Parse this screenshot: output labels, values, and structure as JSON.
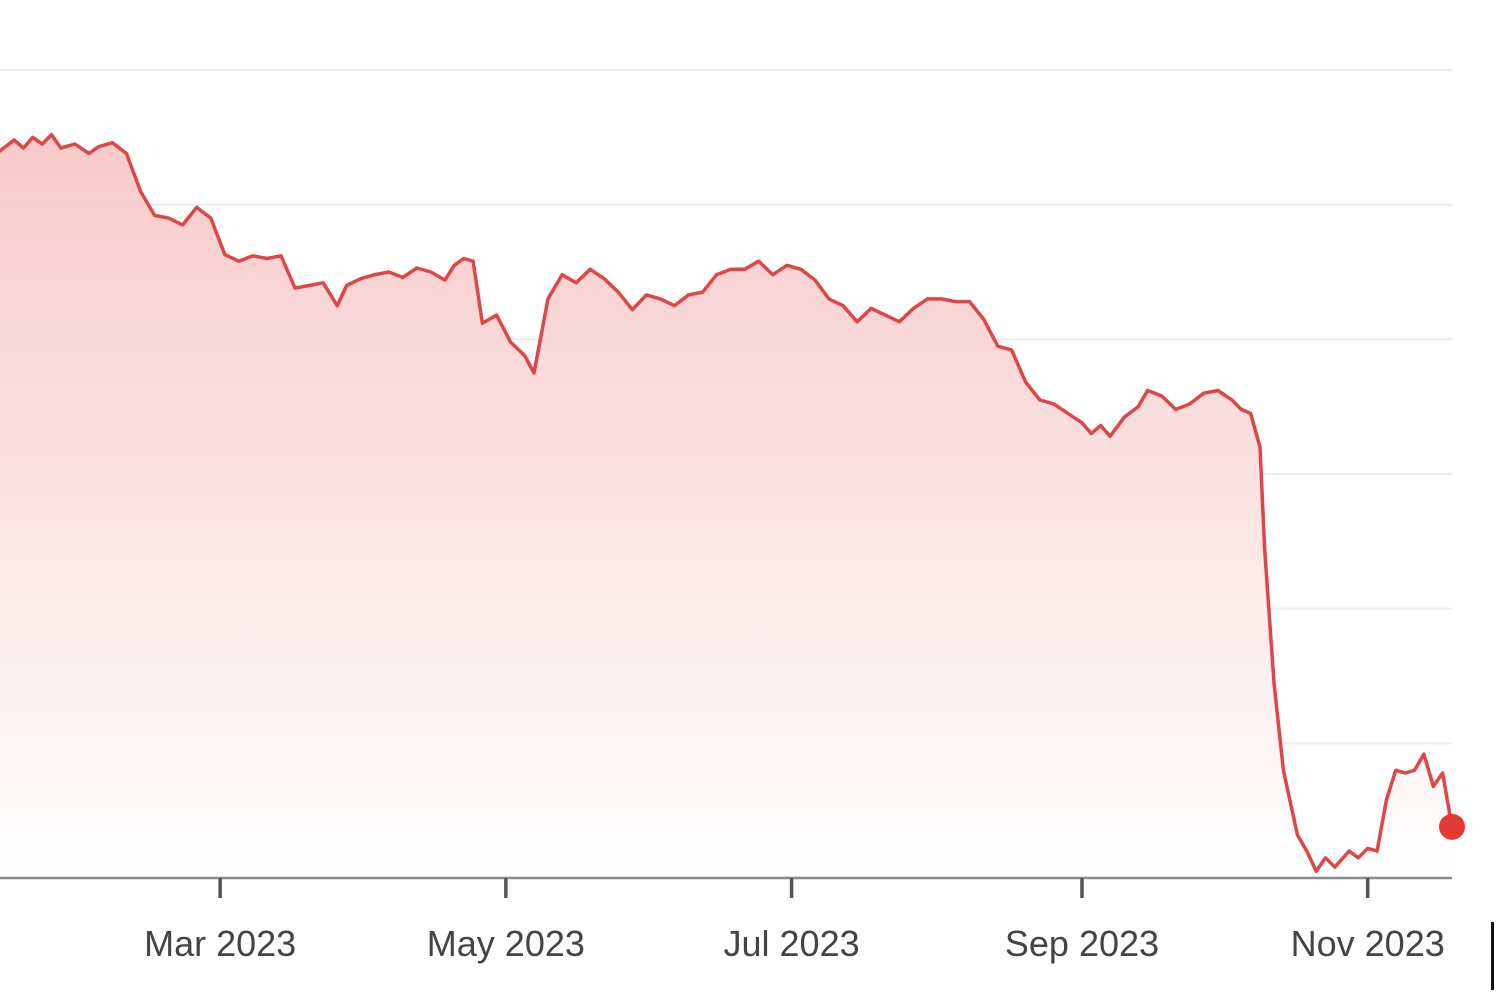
{
  "chart_data": {
    "type": "area",
    "title": "",
    "xlabel": "",
    "ylabel": "",
    "x_ticks": [
      "Mar 2023",
      "May 2023",
      "Jul 2023",
      "Sep 2023",
      "Nov 2023"
    ],
    "y_axis_labels_visible": false,
    "grid": true,
    "legend": "none",
    "colors": {
      "line": "#e04646",
      "fill_top": "#f7c7c7",
      "fill_bottom": "#ffffff",
      "marker": "#e53935"
    },
    "series": [
      {
        "values": [
          [
            "2023-01-13",
            5.4
          ],
          [
            "2023-01-16",
            5.48
          ],
          [
            "2023-01-18",
            5.42
          ],
          [
            "2023-01-20",
            5.5
          ],
          [
            "2023-01-22",
            5.45
          ],
          [
            "2023-01-24",
            5.52
          ],
          [
            "2023-01-26",
            5.42
          ],
          [
            "2023-01-29",
            5.45
          ],
          [
            "2023-02-01",
            5.38
          ],
          [
            "2023-02-03",
            5.43
          ],
          [
            "2023-02-06",
            5.46
          ],
          [
            "2023-02-09",
            5.38
          ],
          [
            "2023-02-12",
            5.1
          ],
          [
            "2023-02-15",
            4.92
          ],
          [
            "2023-02-18",
            4.9
          ],
          [
            "2023-02-21",
            4.85
          ],
          [
            "2023-02-24",
            4.98
          ],
          [
            "2023-02-27",
            4.9
          ],
          [
            "2023-03-02",
            4.63
          ],
          [
            "2023-03-05",
            4.58
          ],
          [
            "2023-03-08",
            4.62
          ],
          [
            "2023-03-11",
            4.6
          ],
          [
            "2023-03-14",
            4.62
          ],
          [
            "2023-03-17",
            4.38
          ],
          [
            "2023-03-20",
            4.4
          ],
          [
            "2023-03-23",
            4.42
          ],
          [
            "2023-03-26",
            4.25
          ],
          [
            "2023-03-28",
            4.4
          ],
          [
            "2023-03-31",
            4.45
          ],
          [
            "2023-04-03",
            4.48
          ],
          [
            "2023-04-06",
            4.5
          ],
          [
            "2023-04-09",
            4.46
          ],
          [
            "2023-04-12",
            4.53
          ],
          [
            "2023-04-15",
            4.5
          ],
          [
            "2023-04-18",
            4.44
          ],
          [
            "2023-04-20",
            4.55
          ],
          [
            "2023-04-22",
            4.6
          ],
          [
            "2023-04-24",
            4.58
          ],
          [
            "2023-04-26",
            4.12
          ],
          [
            "2023-04-29",
            4.18
          ],
          [
            "2023-05-02",
            3.98
          ],
          [
            "2023-05-05",
            3.88
          ],
          [
            "2023-05-07",
            3.75
          ],
          [
            "2023-05-10",
            4.3
          ],
          [
            "2023-05-13",
            4.48
          ],
          [
            "2023-05-16",
            4.42
          ],
          [
            "2023-05-19",
            4.52
          ],
          [
            "2023-05-22",
            4.45
          ],
          [
            "2023-05-25",
            4.35
          ],
          [
            "2023-05-28",
            4.22
          ],
          [
            "2023-05-31",
            4.33
          ],
          [
            "2023-06-03",
            4.3
          ],
          [
            "2023-06-06",
            4.25
          ],
          [
            "2023-06-09",
            4.33
          ],
          [
            "2023-06-12",
            4.35
          ],
          [
            "2023-06-15",
            4.48
          ],
          [
            "2023-06-18",
            4.52
          ],
          [
            "2023-06-21",
            4.52
          ],
          [
            "2023-06-24",
            4.58
          ],
          [
            "2023-06-27",
            4.48
          ],
          [
            "2023-06-30",
            4.55
          ],
          [
            "2023-07-03",
            4.52
          ],
          [
            "2023-07-06",
            4.44
          ],
          [
            "2023-07-09",
            4.3
          ],
          [
            "2023-07-12",
            4.25
          ],
          [
            "2023-07-15",
            4.13
          ],
          [
            "2023-07-18",
            4.23
          ],
          [
            "2023-07-21",
            4.18
          ],
          [
            "2023-07-24",
            4.13
          ],
          [
            "2023-07-27",
            4.23
          ],
          [
            "2023-07-30",
            4.3
          ],
          [
            "2023-08-02",
            4.3
          ],
          [
            "2023-08-05",
            4.28
          ],
          [
            "2023-08-08",
            4.28
          ],
          [
            "2023-08-11",
            4.15
          ],
          [
            "2023-08-14",
            3.95
          ],
          [
            "2023-08-17",
            3.92
          ],
          [
            "2023-08-20",
            3.68
          ],
          [
            "2023-08-23",
            3.55
          ],
          [
            "2023-08-26",
            3.52
          ],
          [
            "2023-08-29",
            3.45
          ],
          [
            "2023-09-01",
            3.38
          ],
          [
            "2023-09-03",
            3.3
          ],
          [
            "2023-09-05",
            3.36
          ],
          [
            "2023-09-07",
            3.28
          ],
          [
            "2023-09-10",
            3.42
          ],
          [
            "2023-09-13",
            3.5
          ],
          [
            "2023-09-15",
            3.62
          ],
          [
            "2023-09-18",
            3.58
          ],
          [
            "2023-09-21",
            3.48
          ],
          [
            "2023-09-24",
            3.52
          ],
          [
            "2023-09-27",
            3.6
          ],
          [
            "2023-09-30",
            3.62
          ],
          [
            "2023-10-03",
            3.55
          ],
          [
            "2023-10-05",
            3.48
          ],
          [
            "2023-10-07",
            3.45
          ],
          [
            "2023-10-09",
            3.2
          ],
          [
            "2023-10-10",
            2.45
          ],
          [
            "2023-10-12",
            1.45
          ],
          [
            "2023-10-14",
            0.8
          ],
          [
            "2023-10-17",
            0.32
          ],
          [
            "2023-10-19",
            0.2
          ],
          [
            "2023-10-21",
            0.05
          ],
          [
            "2023-10-23",
            0.15
          ],
          [
            "2023-10-25",
            0.08
          ],
          [
            "2023-10-28",
            0.2
          ],
          [
            "2023-10-30",
            0.15
          ],
          [
            "2023-11-01",
            0.22
          ],
          [
            "2023-11-03",
            0.2
          ],
          [
            "2023-11-05",
            0.58
          ],
          [
            "2023-11-07",
            0.8
          ],
          [
            "2023-11-09",
            0.78
          ],
          [
            "2023-11-11",
            0.8
          ],
          [
            "2023-11-13",
            0.92
          ],
          [
            "2023-11-15",
            0.68
          ],
          [
            "2023-11-17",
            0.78
          ],
          [
            "2023-11-19",
            0.38
          ]
        ]
      }
    ],
    "last_point_marker": true
  }
}
